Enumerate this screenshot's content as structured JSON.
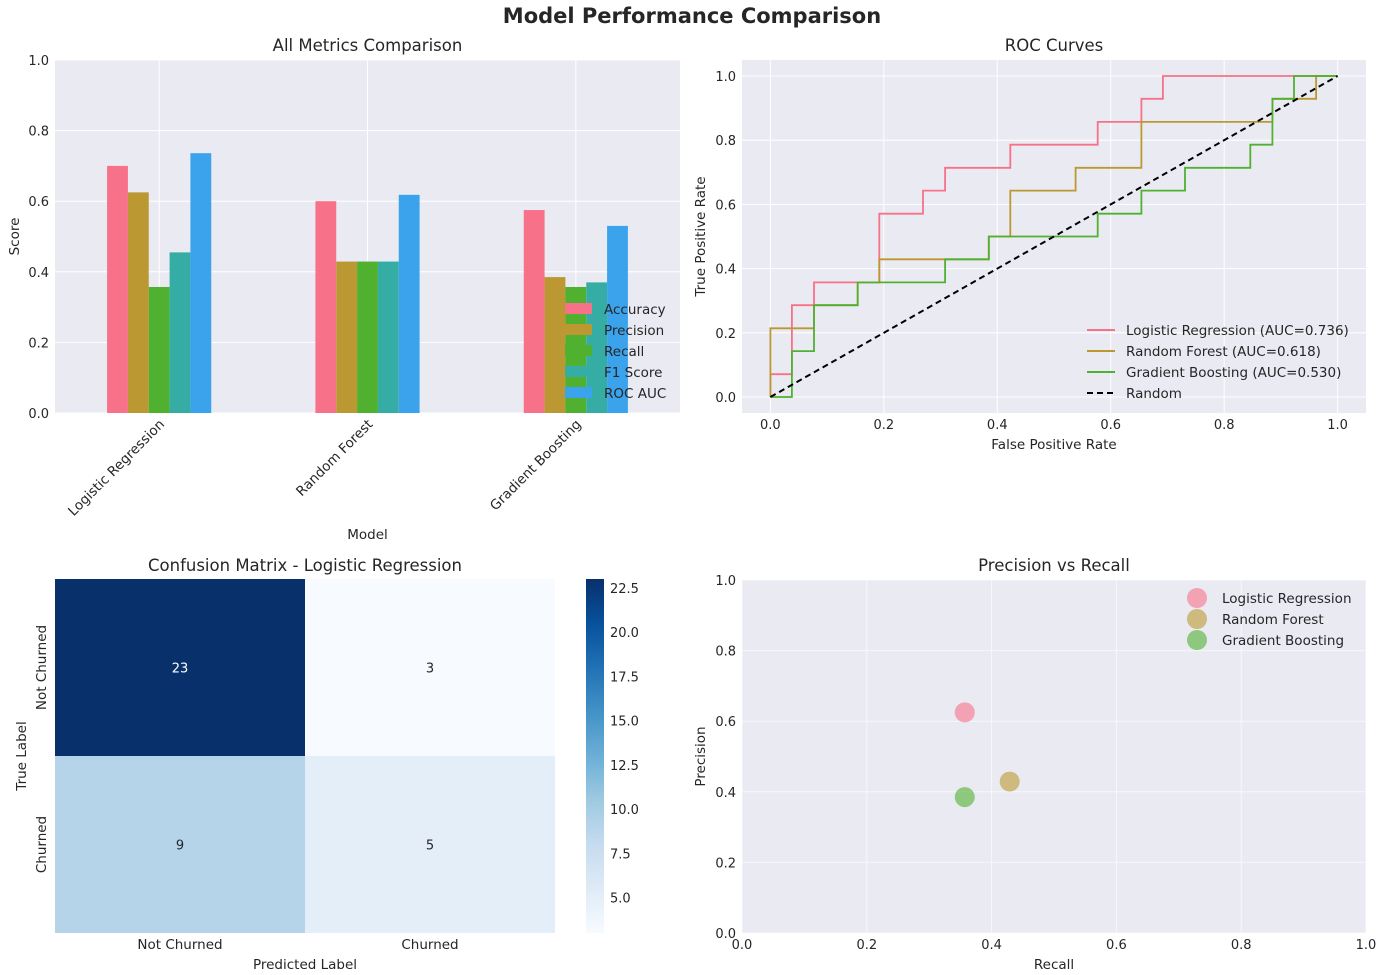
{
  "title": "Model Performance Comparison",
  "colors": {
    "Logistic Regression": "#f77189",
    "Random Forest": "#bb9832",
    "Gradient Boosting": "#50b131",
    "F1 Score": "#36ada4",
    "ROC AUC": "#3ba3ec",
    "axes_bg": "#eaeaf2",
    "grid": "#ffffff"
  },
  "chart_data": [
    {
      "type": "bar",
      "title": "All Metrics Comparison",
      "xlabel": "Model",
      "ylabel": "Score",
      "ylim": [
        0,
        1
      ],
      "yticks": [
        "0.0",
        "0.2",
        "0.4",
        "0.6",
        "0.8",
        "1.0"
      ],
      "categories": [
        "Logistic Regression",
        "Random Forest",
        "Gradient Boosting"
      ],
      "legend_placement": "lower-right",
      "series": [
        {
          "name": "Accuracy",
          "color": "#f77189",
          "values": [
            0.7,
            0.6,
            0.575
          ]
        },
        {
          "name": "Precision",
          "color": "#bb9832",
          "values": [
            0.625,
            0.429,
            0.385
          ]
        },
        {
          "name": "Recall",
          "color": "#50b131",
          "values": [
            0.357,
            0.429,
            0.357
          ]
        },
        {
          "name": "F1 Score",
          "color": "#36ada4",
          "values": [
            0.455,
            0.429,
            0.37
          ]
        },
        {
          "name": "ROC AUC",
          "color": "#3ba3ec",
          "values": [
            0.736,
            0.618,
            0.53
          ]
        }
      ]
    },
    {
      "type": "line",
      "title": "ROC Curves",
      "xlabel": "False Positive Rate",
      "ylabel": "True Positive Rate",
      "xlim": [
        -0.05,
        1.05
      ],
      "ylim": [
        -0.05,
        1.05
      ],
      "xticks": [
        "0.0",
        "0.2",
        "0.4",
        "0.6",
        "0.8",
        "1.0"
      ],
      "yticks": [
        "0.0",
        "0.2",
        "0.4",
        "0.6",
        "0.8",
        "1.0"
      ],
      "legend_placement": "lower-right",
      "series": [
        {
          "name": "Logistic Regression (AUC=0.736)",
          "color": "#f77189",
          "step": true,
          "x": [
            0,
            0,
            0.038,
            0.038,
            0.077,
            0.077,
            0.192,
            0.192,
            0.269,
            0.269,
            0.308,
            0.308,
            0.423,
            0.423,
            0.577,
            0.577,
            0.654,
            0.654,
            0.692,
            0.692,
            1
          ],
          "y": [
            0,
            0.071,
            0.071,
            0.286,
            0.286,
            0.357,
            0.357,
            0.571,
            0.571,
            0.643,
            0.643,
            0.714,
            0.714,
            0.786,
            0.786,
            0.857,
            0.857,
            0.929,
            0.929,
            1,
            1
          ]
        },
        {
          "name": "Random Forest (AUC=0.618)",
          "color": "#bb9832",
          "step": true,
          "x": [
            0,
            0,
            0.077,
            0.077,
            0.154,
            0.154,
            0.192,
            0.192,
            0.385,
            0.385,
            0.423,
            0.423,
            0.538,
            0.538,
            0.654,
            0.654,
            0.885,
            0.885,
            0.962,
            0.962,
            1
          ],
          "y": [
            0,
            0.214,
            0.214,
            0.286,
            0.286,
            0.357,
            0.357,
            0.429,
            0.429,
            0.5,
            0.5,
            0.643,
            0.643,
            0.714,
            0.714,
            0.857,
            0.857,
            0.929,
            0.929,
            1,
            1
          ]
        },
        {
          "name": "Gradient Boosting (AUC=0.530)",
          "color": "#50b131",
          "step": true,
          "x": [
            0,
            0.038,
            0.038,
            0.077,
            0.077,
            0.154,
            0.154,
            0.308,
            0.308,
            0.385,
            0.385,
            0.577,
            0.577,
            0.654,
            0.654,
            0.731,
            0.731,
            0.846,
            0.846,
            0.885,
            0.885,
            0.923,
            0.923,
            1
          ],
          "y": [
            0,
            0,
            0.143,
            0.143,
            0.286,
            0.286,
            0.357,
            0.357,
            0.429,
            0.429,
            0.5,
            0.5,
            0.571,
            0.571,
            0.643,
            0.643,
            0.714,
            0.714,
            0.786,
            0.786,
            0.929,
            0.929,
            1,
            1
          ]
        },
        {
          "name": "Random",
          "color": "#000000",
          "dashed": true,
          "x": [
            0,
            1
          ],
          "y": [
            0,
            1
          ]
        }
      ]
    },
    {
      "type": "heatmap",
      "title": "Confusion Matrix - Logistic Regression",
      "xlabel": "Predicted Label",
      "ylabel": "True Label",
      "x_categories": [
        "Not Churned",
        "Churned"
      ],
      "y_categories": [
        "Not Churned",
        "Churned"
      ],
      "values": [
        [
          23,
          3
        ],
        [
          9,
          5
        ]
      ],
      "colormap": "Blues",
      "colorbar_range": [
        3,
        23
      ],
      "colorbar_ticks": [
        "5.0",
        "7.5",
        "10.0",
        "12.5",
        "15.0",
        "17.5",
        "20.0",
        "22.5"
      ]
    },
    {
      "type": "scatter",
      "title": "Precision vs Recall",
      "xlabel": "Recall",
      "ylabel": "Precision",
      "xlim": [
        0,
        1
      ],
      "ylim": [
        0,
        1
      ],
      "xticks": [
        "0.0",
        "0.2",
        "0.4",
        "0.6",
        "0.8",
        "1.0"
      ],
      "yticks": [
        "0.0",
        "0.2",
        "0.4",
        "0.6",
        "0.8",
        "1.0"
      ],
      "legend_placement": "upper-right",
      "series": [
        {
          "name": "Logistic Regression",
          "color": "#f77189",
          "x": [
            0.357
          ],
          "y": [
            0.625
          ]
        },
        {
          "name": "Random Forest",
          "color": "#bb9832",
          "x": [
            0.429
          ],
          "y": [
            0.429
          ]
        },
        {
          "name": "Gradient Boosting",
          "color": "#50b131",
          "x": [
            0.357
          ],
          "y": [
            0.385
          ]
        }
      ]
    }
  ]
}
